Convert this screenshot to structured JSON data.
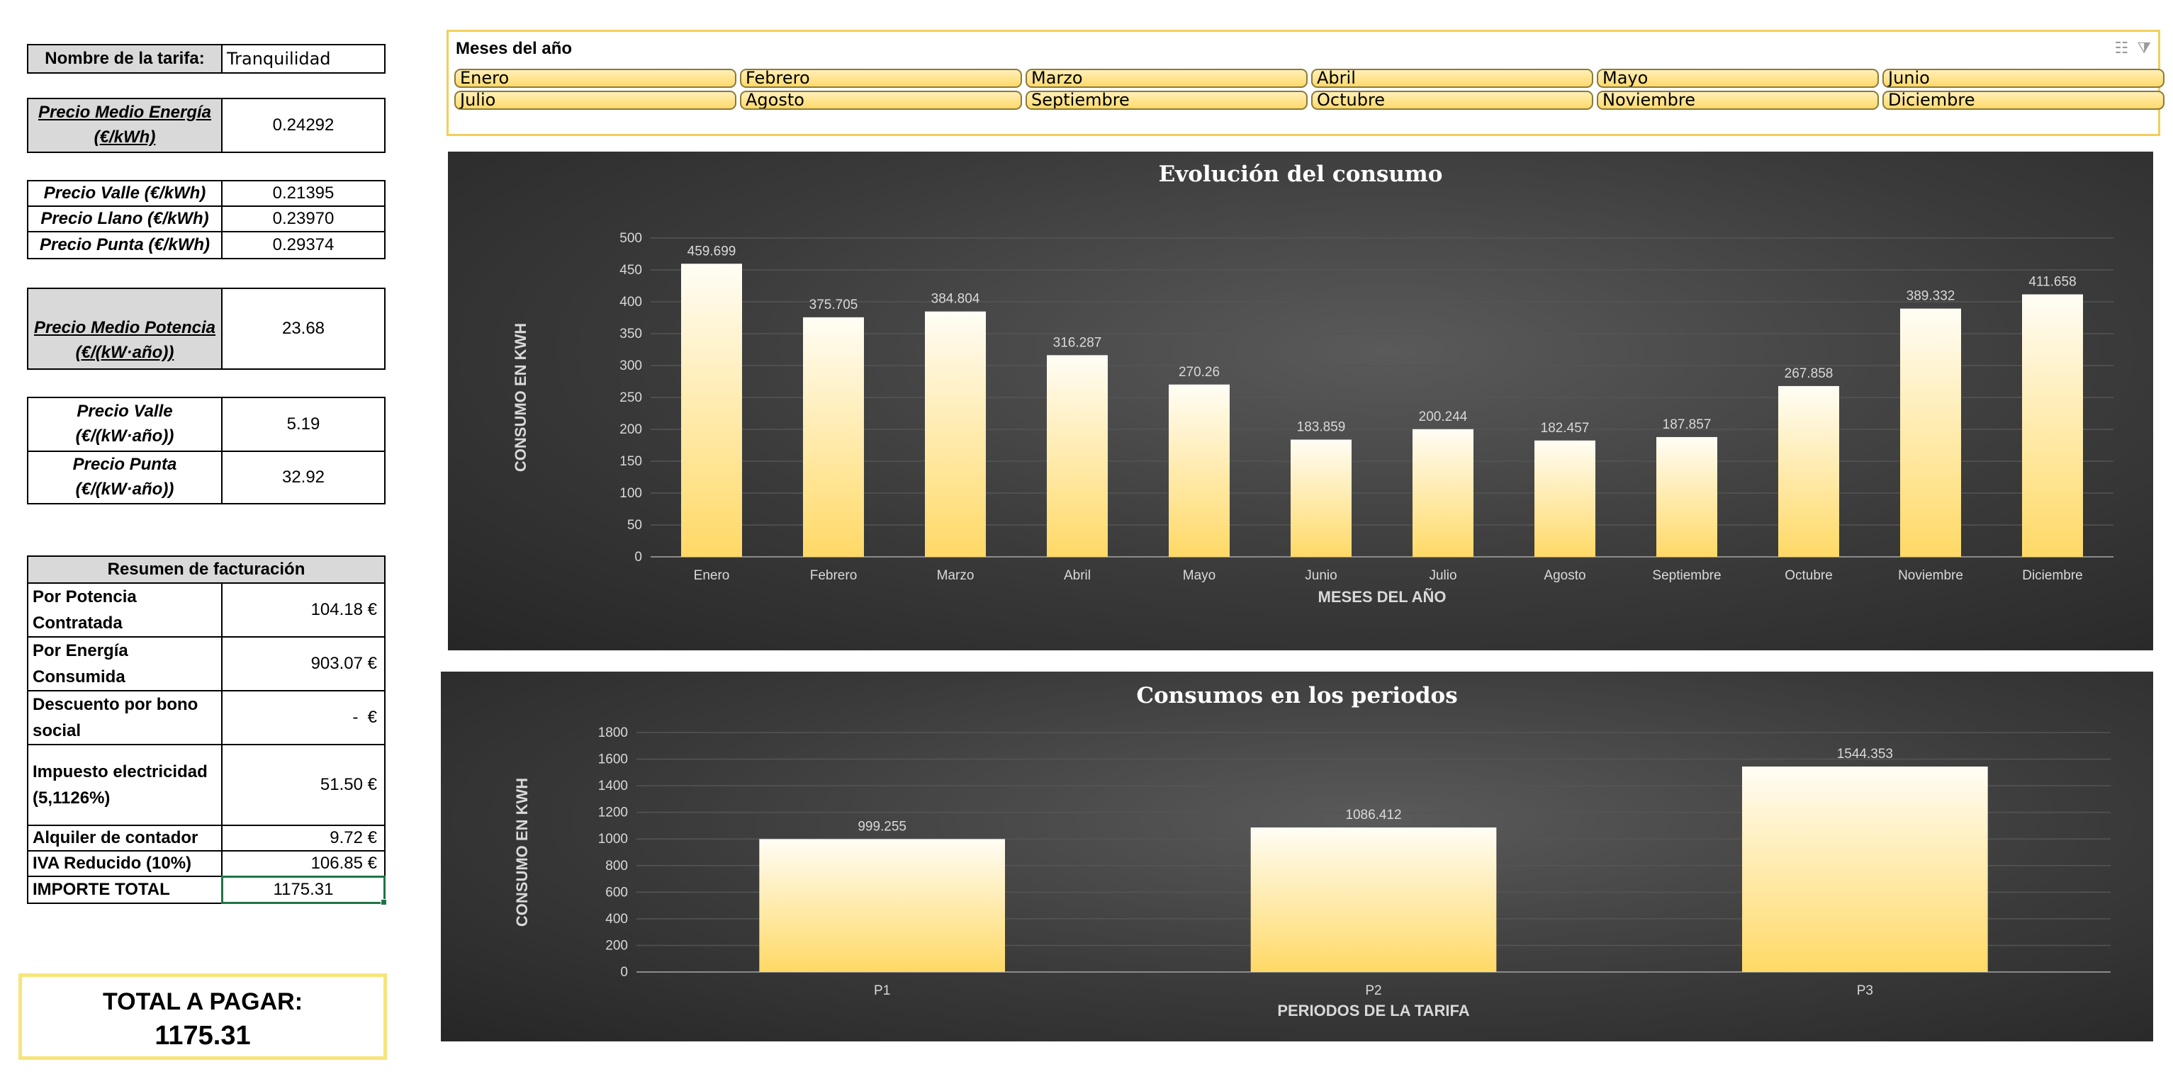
{
  "tariff": {
    "name_label": "Nombre de la tarifa:",
    "name_value": "Tranquilidad"
  },
  "energy_avg": {
    "label_line1": "Precio Medio Energía",
    "label_line2": "(€/kWh)",
    "value": "0.24292"
  },
  "energy_prices": [
    {
      "label": "Precio Valle (€/kWh)",
      "value": "0.21395"
    },
    {
      "label": "Precio Llano (€/kWh)",
      "value": "0.23970"
    },
    {
      "label": "Precio Punta (€/kWh)",
      "value": "0.29374"
    }
  ],
  "power_avg": {
    "label_line1": "Precio Medio Potencia",
    "label_line2": "(€/(kW·año))",
    "value": "23.68"
  },
  "power_prices": [
    {
      "label_line1": "Precio Valle",
      "label_line2": "(€/(kW·año))",
      "value": "5.19"
    },
    {
      "label_line1": "Precio Punta",
      "label_line2": "(€/(kW·año))",
      "value": "32.92"
    }
  ],
  "billing": {
    "header": "Resumen de facturación",
    "rows": [
      {
        "label_line1": "Por Potencia",
        "label_line2": "Contratada",
        "value": "104.18 €"
      },
      {
        "label_line1": "Por Energía",
        "label_line2": "Consumida",
        "value": "903.07 €"
      },
      {
        "label_line1": "Descuento por bono",
        "label_line2": "social",
        "value": "-  €"
      },
      {
        "label_line1": "Impuesto electricidad",
        "label_line2": "(5,1126%)",
        "value": "51.50 €"
      },
      {
        "label": "Alquiler de contador",
        "value": "9.72 €"
      },
      {
        "label": "IVA Reducido (10%)",
        "value": "106.85 €"
      },
      {
        "label": "IMPORTE TOTAL",
        "value": "1175.31"
      }
    ]
  },
  "total_box": {
    "label": "TOTAL A PAGAR:",
    "value": "1175.31"
  },
  "slicer": {
    "title": "Meses del año",
    "items": [
      "Enero",
      "Febrero",
      "Marzo",
      "Abril",
      "Mayo",
      "Junio",
      "Julio",
      "Agosto",
      "Septiembre",
      "Octubre",
      "Noviembre",
      "Diciembre"
    ]
  },
  "chart_data": [
    {
      "type": "bar",
      "title": "Evolución del consumo",
      "xlabel": "MESES DEL AÑO",
      "ylabel": "CONSUMO EN KWH",
      "categories": [
        "Enero",
        "Febrero",
        "Marzo",
        "Abril",
        "Mayo",
        "Junio",
        "Julio",
        "Agosto",
        "Septiembre",
        "Octubre",
        "Noviembre",
        "Diciembre"
      ],
      "values": [
        459.699,
        375.705,
        384.804,
        316.287,
        270.26,
        183.859,
        200.244,
        182.457,
        187.857,
        267.858,
        389.332,
        411.658
      ],
      "data_labels": [
        "459.699",
        "375.705",
        "384.804",
        "316.287",
        "270.26",
        "183.859",
        "200.244",
        "182.457",
        "187.857",
        "267.858",
        "389.332",
        "411.658"
      ],
      "ylim": [
        0,
        500
      ],
      "yticks": [
        0,
        50,
        100,
        150,
        200,
        250,
        300,
        350,
        400,
        450,
        500
      ],
      "grid": true,
      "colors": {
        "bar_top": "#fffdf5",
        "bar_bottom": "#ffd966",
        "text": "#ffffff",
        "axis_text": "#d9d9d9",
        "grid": "#555555"
      }
    },
    {
      "type": "bar",
      "title": "Consumos en los periodos",
      "xlabel": "PERIODOS DE LA TARIFA",
      "ylabel": "CONSUMO EN KWH",
      "categories": [
        "P1",
        "P2",
        "P3"
      ],
      "values": [
        999.255,
        1086.412,
        1544.353
      ],
      "data_labels": [
        "999.255",
        "1086.412",
        "1544.353"
      ],
      "ylim": [
        0,
        1800
      ],
      "yticks": [
        0,
        200,
        400,
        600,
        800,
        1000,
        1200,
        1400,
        1600,
        1800
      ],
      "grid": true,
      "colors": {
        "bar_top": "#fffdf5",
        "bar_bottom": "#ffd966",
        "text": "#ffffff",
        "axis_text": "#d9d9d9",
        "grid": "#555555"
      }
    }
  ],
  "icons": {
    "multiselect": "multi-select-icon",
    "clear_filter": "clear-filter-icon"
  }
}
